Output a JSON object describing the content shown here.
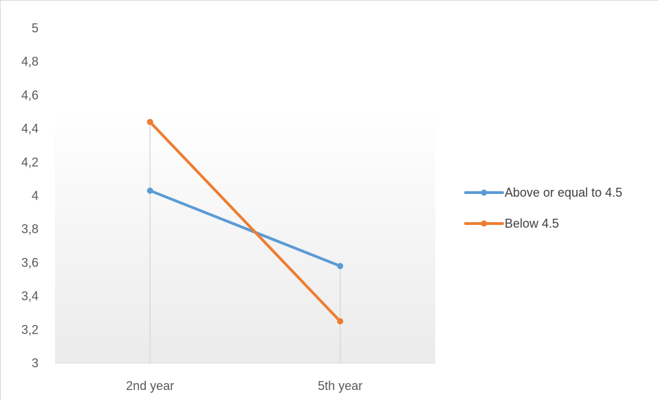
{
  "chart_data": {
    "type": "line",
    "title": "",
    "xlabel": "",
    "ylabel": "",
    "categories": [
      "2nd year",
      "5th year"
    ],
    "y_ticks": [
      "3",
      "3,2",
      "3,4",
      "3,6",
      "3,8",
      "4",
      "4,2",
      "4,4",
      "4,6",
      "4,8",
      "5"
    ],
    "ylim": [
      3,
      5
    ],
    "grid": false,
    "legend_position": "right",
    "series": [
      {
        "name": "Above or equal to 4.5",
        "color": "#5b9bd5",
        "values": [
          4.03,
          3.58
        ]
      },
      {
        "name": "Below 4.5",
        "color": "#ed7d31",
        "values": [
          4.44,
          3.25
        ]
      }
    ]
  }
}
